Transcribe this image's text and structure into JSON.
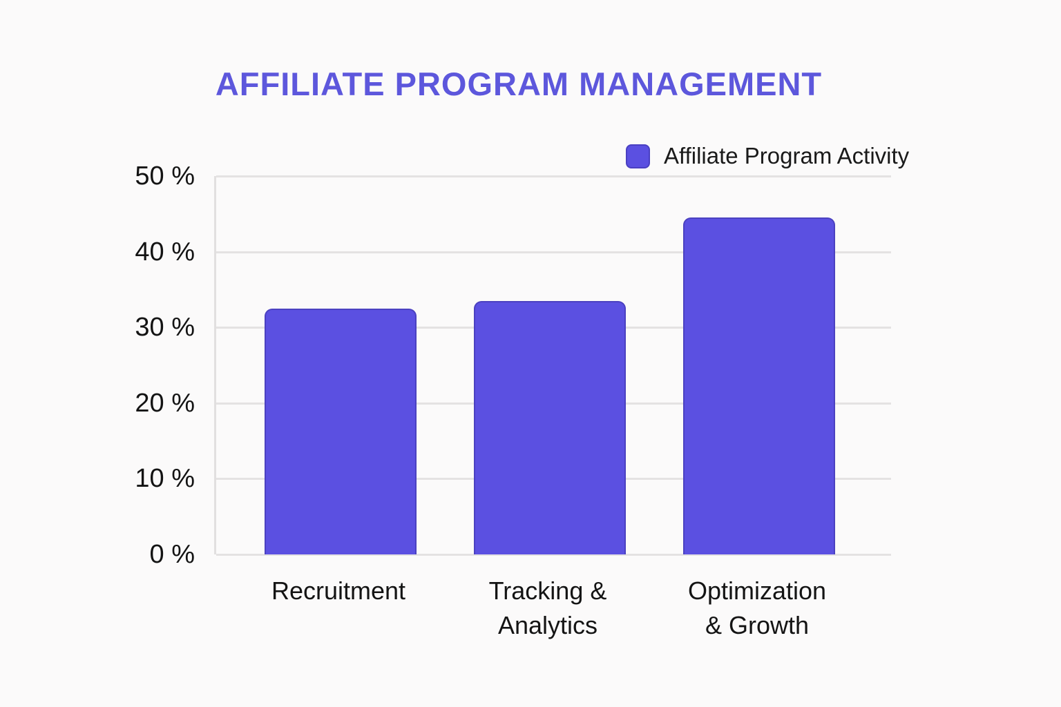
{
  "page": {
    "background_color": "#fbfafa"
  },
  "chart": {
    "title": "AFFILIATE PROGRAM MANAGEMENT",
    "title_color": "#5d57dc",
    "legend": {
      "label": "Affiliate Program Activity",
      "swatch_color": "#5b50e1"
    },
    "colors": {
      "bar_fill": "#5b50e1",
      "bar_border": "#4b41c0",
      "gridline": "#e4e2e2",
      "axis_text": "#141414"
    }
  },
  "chart_data": {
    "type": "bar",
    "title": "AFFILIATE PROGRAM MANAGEMENT",
    "categories": [
      "Recruitment",
      "Tracking &\nAnalytics",
      "Optimization\n& Growth"
    ],
    "values": [
      32.5,
      33.5,
      44.5
    ],
    "series": [
      {
        "name": "Affiliate Program Activity",
        "values": [
          32.5,
          33.5,
          44.5
        ]
      }
    ],
    "xlabel": "",
    "ylabel": "",
    "ylim": [
      0,
      50
    ],
    "yticks": [
      0,
      10,
      20,
      30,
      40,
      50
    ],
    "ytick_labels": [
      "0 %",
      "10 %",
      "20 %",
      "30 %",
      "40 %",
      "50 %"
    ],
    "unit": "%",
    "grid": "horizontal",
    "legend_position": "top-right"
  }
}
